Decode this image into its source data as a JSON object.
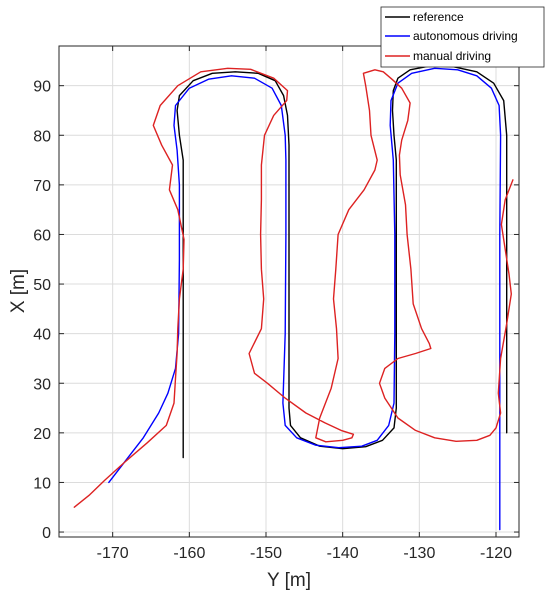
{
  "chart_data": {
    "type": "line",
    "xlabel": "Y [m]",
    "ylabel": "X [m]",
    "xlim": [
      -177,
      -117
    ],
    "ylim": [
      -1,
      98
    ],
    "xticks": [
      -170,
      -160,
      -150,
      -140,
      -130,
      -120
    ],
    "yticks": [
      0,
      10,
      20,
      30,
      40,
      50,
      60,
      70,
      80,
      90
    ],
    "grid": true,
    "legend_position": "top-right",
    "series": [
      {
        "name": "reference",
        "color": "#000000",
        "x": [
          -160.8,
          -160.8,
          -160.8,
          -160.8,
          -161.3,
          -161.6,
          -161.3,
          -159.5,
          -157,
          -154,
          -151,
          -148.8,
          -147.7,
          -147.2,
          -147,
          -147,
          -147,
          -147,
          -146.8,
          -145.5,
          -143,
          -140,
          -137,
          -134.8,
          -133.3,
          -133,
          -133,
          -133,
          -133,
          -133.3,
          -133.5,
          -133.4,
          -132.8,
          -131.2,
          -128.5,
          -125.5,
          -122.5,
          -120.3,
          -119,
          -118.6,
          -118.6,
          -118.6,
          -118.6
        ],
        "y": [
          15,
          40,
          60,
          75,
          80,
          85,
          88,
          91,
          92.5,
          92.8,
          92.5,
          91,
          88,
          84,
          78,
          60,
          40,
          25,
          21.5,
          19,
          17.3,
          16.8,
          17.2,
          18.5,
          21,
          25,
          40,
          60,
          75,
          80,
          85,
          89,
          91.5,
          93.2,
          94,
          93.8,
          92.8,
          90.5,
          87,
          80,
          60,
          40,
          20
        ]
      },
      {
        "name": "autonomous driving",
        "color": "#0000ff",
        "x": [
          -170.5,
          -168,
          -166,
          -164,
          -162.8,
          -161.8,
          -161.4,
          -161.3,
          -161.3,
          -161.6,
          -162,
          -161.8,
          -160,
          -157.5,
          -154.5,
          -151.5,
          -149.2,
          -148,
          -147.5,
          -147.4,
          -147.4,
          -147.5,
          -147.8,
          -147.5,
          -146,
          -143.5,
          -140.5,
          -137.5,
          -135.5,
          -134,
          -133.3,
          -133.2,
          -133.2,
          -133.4,
          -133.8,
          -133.7,
          -132.8,
          -131,
          -128,
          -125,
          -122.5,
          -120.6,
          -119.6,
          -119.4,
          -119.5,
          -119.5,
          -119.5,
          -119.5
        ],
        "y": [
          10,
          15,
          19,
          24,
          28,
          33,
          40,
          55,
          70,
          77,
          82,
          86,
          89.5,
          91.3,
          92,
          91.5,
          89.5,
          86,
          80,
          75,
          60,
          40,
          26,
          21.5,
          19,
          17.5,
          17,
          17.3,
          18.5,
          21.5,
          26,
          40,
          60,
          75,
          82,
          87,
          90.5,
          92.5,
          93.5,
          93.2,
          92,
          89.5,
          86,
          80,
          60,
          40,
          20,
          0.5
        ]
      },
      {
        "name": "manual driving",
        "color": "#dd2222",
        "x": [
          -175,
          -173,
          -171,
          -168.5,
          -165.5,
          -163,
          -162,
          -161.8,
          -161.6,
          -161.5,
          -161.3,
          -160.8,
          -160.7,
          -161.5,
          -162.6,
          -162.2,
          -163.6,
          -164.7,
          -163.8,
          -161.5,
          -158.5,
          -155,
          -152,
          -149,
          -147.2,
          -147.3,
          -149,
          -150.2,
          -150.6,
          -150.6,
          -150.7,
          -150.6,
          -150.3,
          -150.6,
          -152.2,
          -151.5,
          -149.8,
          -147.5,
          -144.8,
          -142.3,
          -140.2,
          -138.6,
          -138.8,
          -140,
          -142.2,
          -143.5,
          -143,
          -141.5,
          -140.6,
          -140.8,
          -141.2,
          -140.9,
          -140.6,
          -139.2,
          -137.2,
          -135.8,
          -135.5,
          -136.3,
          -136.5,
          -137,
          -137.3,
          -135.8,
          -134.7,
          -133.5,
          -132.3,
          -131.2,
          -131.5,
          -132.3,
          -132.6,
          -132.5,
          -131.8,
          -131.6,
          -131.1,
          -130.8,
          -129.7,
          -128.7,
          -128.5,
          -130.5,
          -132.8,
          -134.5,
          -135.2,
          -134.5,
          -132.8,
          -130.5,
          -128,
          -125.2,
          -122.5,
          -120.8,
          -120,
          -119.4,
          -119.7,
          -119.4,
          -118.6,
          -118,
          -118.3,
          -118.8,
          -119.3,
          -118.8,
          -117.8
        ],
        "y": [
          5,
          7.5,
          10.5,
          14,
          18,
          21.5,
          26,
          31,
          36,
          41,
          47,
          53,
          59,
          65,
          69,
          74,
          78,
          82,
          86,
          90,
          92.8,
          93.5,
          93.3,
          91.5,
          89,
          87,
          84,
          80,
          74,
          67,
          60,
          53,
          47,
          41,
          36,
          32,
          30,
          27,
          24,
          22,
          20.5,
          19.7,
          19,
          18.5,
          18.2,
          19,
          23,
          29,
          35,
          41,
          47,
          53,
          60,
          65,
          69,
          73,
          75,
          80,
          85,
          90,
          92.5,
          93.2,
          92.8,
          91.2,
          89.5,
          86.5,
          83,
          79,
          76,
          72,
          66,
          60,
          53,
          46,
          41,
          38,
          37,
          36,
          35,
          33,
          30,
          27,
          23,
          20.5,
          19,
          18.3,
          18.5,
          19.5,
          21,
          24,
          28,
          35,
          42,
          48,
          52,
          57,
          62,
          67,
          71
        ]
      }
    ]
  }
}
